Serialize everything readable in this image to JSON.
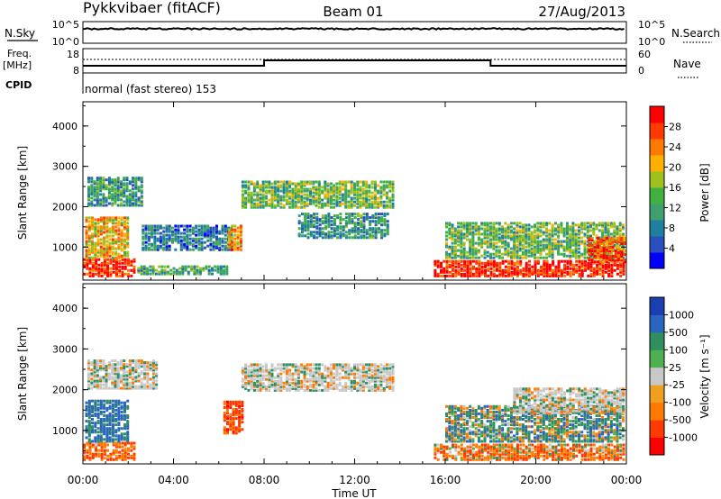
{
  "header": {
    "station": "Pykkvibaer (fitACF)",
    "beam": "Beam 01",
    "date": "27/Aug/2013"
  },
  "status_panels": {
    "nsky": {
      "label": "N.Sky",
      "ticks": [
        "10^5",
        "10^0"
      ]
    },
    "nsearch": {
      "label": "N.Search",
      "ticks": [
        "10^5",
        "10^0"
      ]
    },
    "freq": {
      "label_line1": "Freq.",
      "label_line2": "[MHz]",
      "ticks": [
        "18",
        "8"
      ]
    },
    "nave": {
      "label": "Nave",
      "ticks": [
        "60",
        "0"
      ]
    },
    "cpid": {
      "label": "CPID",
      "value": "normal (fast stereo) 153"
    }
  },
  "chart_data": [
    {
      "type": "heatmap",
      "panel": "power",
      "xlabel": "Time UT",
      "ylabel": "Slant Range [km]",
      "x_ticks": [
        "00:00",
        "04:00",
        "08:00",
        "12:00",
        "16:00",
        "20:00",
        "00:00"
      ],
      "x_range_hours": [
        0,
        24
      ],
      "ylim": [
        180,
        4600
      ],
      "y_ticks": [
        "1000",
        "2000",
        "3000",
        "4000"
      ],
      "colorbar": {
        "label": "Power [dB]",
        "ticks": [
          "4",
          "8",
          "12",
          "16",
          "20",
          "24",
          "28"
        ],
        "colors": [
          "#0000ff",
          "#2a4fbf",
          "#1f7f9f",
          "#3f9f6f",
          "#40b040",
          "#a0c020",
          "#ffb000",
          "#ff7a00",
          "#ff3a00",
          "#ff0000"
        ]
      },
      "echo_regions": [
        {
          "t0": 0.0,
          "t1": 2.3,
          "r0": 250,
          "r1": 700,
          "db": 26
        },
        {
          "t0": 0.1,
          "t1": 2.0,
          "r0": 700,
          "r1": 1700,
          "db": 18
        },
        {
          "t0": 0.2,
          "t1": 2.6,
          "r0": 2000,
          "r1": 2700,
          "db": 9
        },
        {
          "t0": 2.4,
          "t1": 6.3,
          "r0": 300,
          "r1": 520,
          "db": 10
        },
        {
          "t0": 2.6,
          "t1": 6.5,
          "r0": 900,
          "r1": 1500,
          "db": 6
        },
        {
          "t0": 6.4,
          "t1": 7.0,
          "r0": 900,
          "r1": 1500,
          "db": 20
        },
        {
          "t0": 7.0,
          "t1": 13.7,
          "r0": 1950,
          "r1": 2600,
          "db": 12
        },
        {
          "t0": 9.5,
          "t1": 13.5,
          "r0": 1200,
          "r1": 1800,
          "db": 8
        },
        {
          "t0": 15.5,
          "t1": 23.9,
          "r0": 250,
          "r1": 650,
          "db": 26
        },
        {
          "t0": 16.0,
          "t1": 23.9,
          "r0": 700,
          "r1": 1600,
          "db": 12
        },
        {
          "t0": 22.3,
          "t1": 23.9,
          "r0": 600,
          "r1": 1200,
          "db": 24
        }
      ]
    },
    {
      "type": "heatmap",
      "panel": "velocity",
      "xlabel": "Time UT",
      "ylabel": "Slant Range [km]",
      "x_ticks": [
        "00:00",
        "04:00",
        "08:00",
        "12:00",
        "16:00",
        "20:00",
        "00:00"
      ],
      "x_range_hours": [
        0,
        24
      ],
      "ylim": [
        180,
        4600
      ],
      "y_ticks": [
        "1000",
        "2000",
        "3000",
        "4000"
      ],
      "colorbar": {
        "label": "Velocity [m s⁻¹]",
        "ticks": [
          "1000",
          "500",
          "100",
          "25",
          "-25",
          "-100",
          "-500",
          "-1000"
        ],
        "colors": [
          "#1a3fb0",
          "#2a66c0",
          "#2f8f5f",
          "#4fb04f",
          "#c8c8c8",
          "#f0a020",
          "#ff7a00",
          "#ff3a00",
          "#ff0000"
        ]
      },
      "echo_regions": [
        {
          "t0": 0.0,
          "t1": 2.3,
          "r0": 250,
          "r1": 700,
          "v": -300
        },
        {
          "t0": 0.1,
          "t1": 2.0,
          "r0": 700,
          "r1": 1700,
          "v": 400
        },
        {
          "t0": 0.2,
          "t1": 3.2,
          "r0": 2000,
          "r1": 2700,
          "v": 0
        },
        {
          "t0": 6.2,
          "t1": 7.0,
          "r0": 900,
          "r1": 1700,
          "v": -450
        },
        {
          "t0": 7.0,
          "t1": 13.7,
          "r0": 1950,
          "r1": 2600,
          "v": 0
        },
        {
          "t0": 15.5,
          "t1": 23.9,
          "r0": 250,
          "r1": 650,
          "v": -200
        },
        {
          "t0": 16.0,
          "t1": 23.9,
          "r0": 700,
          "r1": 1600,
          "v": 150
        },
        {
          "t0": 19.0,
          "t1": 23.9,
          "r0": 1400,
          "r1": 2000,
          "v": 0
        }
      ]
    }
  ]
}
